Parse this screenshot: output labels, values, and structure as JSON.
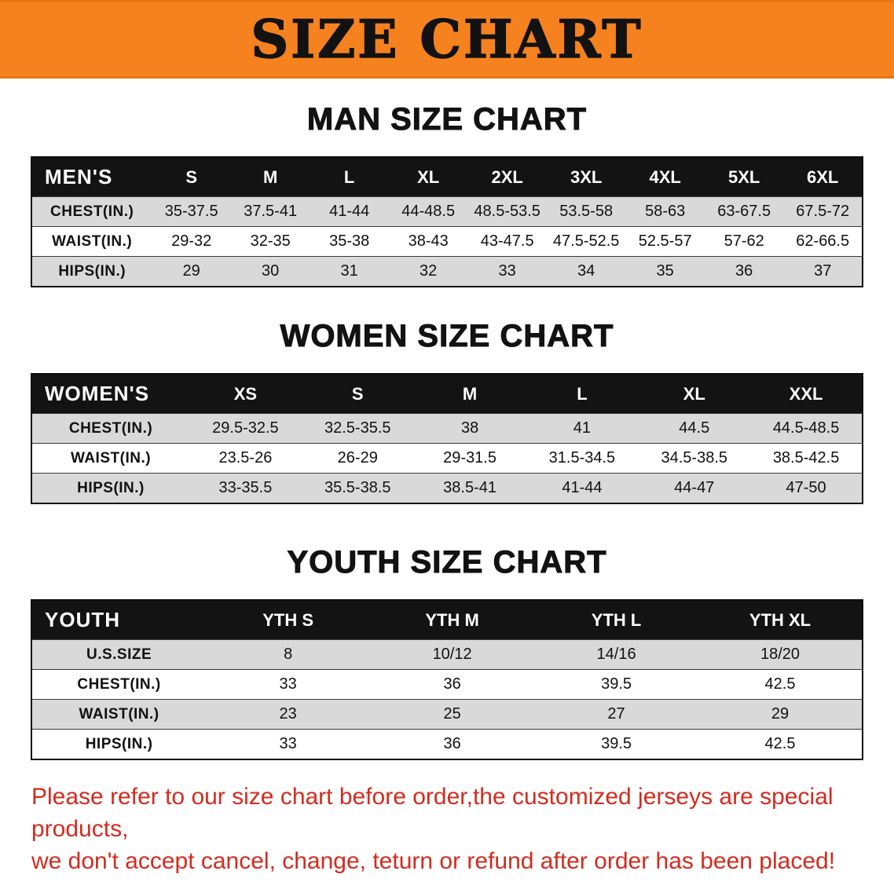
{
  "banner": {
    "title": "SIZE CHART",
    "bg_color": "#f5821f",
    "text_color": "#121212"
  },
  "sections": [
    {
      "heading": "MAN SIZE CHART",
      "table": {
        "header": [
          "MEN'S",
          "S",
          "M",
          "L",
          "XL",
          "2XL",
          "3XL",
          "4XL",
          "5XL",
          "6XL"
        ],
        "rows": [
          [
            "CHEST(IN.)",
            "35-37.5",
            "37.5-41",
            "41-44",
            "44-48.5",
            "48.5-53.5",
            "53.5-58",
            "58-63",
            "63-67.5",
            "67.5-72"
          ],
          [
            "WAIST(IN.)",
            "29-32",
            "32-35",
            "35-38",
            "38-43",
            "43-47.5",
            "47.5-52.5",
            "52.5-57",
            "57-62",
            "62-66.5"
          ],
          [
            "HIPS(IN.)",
            "29",
            "30",
            "31",
            "32",
            "33",
            "34",
            "35",
            "36",
            "37"
          ]
        ]
      }
    },
    {
      "heading": "WOMEN SIZE CHART",
      "table": {
        "header": [
          "WOMEN'S",
          "XS",
          "S",
          "M",
          "L",
          "XL",
          "XXL"
        ],
        "rows": [
          [
            "CHEST(IN.)",
            "29.5-32.5",
            "32.5-35.5",
            "38",
            "41",
            "44.5",
            "44.5-48.5"
          ],
          [
            "WAIST(IN.)",
            "23.5-26",
            "26-29",
            "29-31.5",
            "31.5-34.5",
            "34.5-38.5",
            "38.5-42.5"
          ],
          [
            "HIPS(IN.)",
            "33-35.5",
            "35.5-38.5",
            "38.5-41",
            "41-44",
            "44-47",
            "47-50"
          ]
        ]
      }
    },
    {
      "heading": "YOUTH SIZE CHART",
      "table": {
        "header": [
          "YOUTH",
          "YTH S",
          "YTH M",
          "YTH L",
          "YTH XL"
        ],
        "rows": [
          [
            "U.S.SIZE",
            "8",
            "10/12",
            "14/16",
            "18/20"
          ],
          [
            "CHEST(IN.)",
            "33",
            "36",
            "39.5",
            "42.5"
          ],
          [
            "WAIST(IN.)",
            "23",
            "25",
            "27",
            "29"
          ],
          [
            "HIPS(IN.)",
            "33",
            "36",
            "39.5",
            "42.5"
          ]
        ]
      }
    }
  ],
  "disclaimer": {
    "line1": "Please refer to our size chart before order,the customized jerseys are special products,",
    "line2": "we don't accept cancel, change, teturn or refund after order has been placed!",
    "color": "#d42b1e"
  }
}
